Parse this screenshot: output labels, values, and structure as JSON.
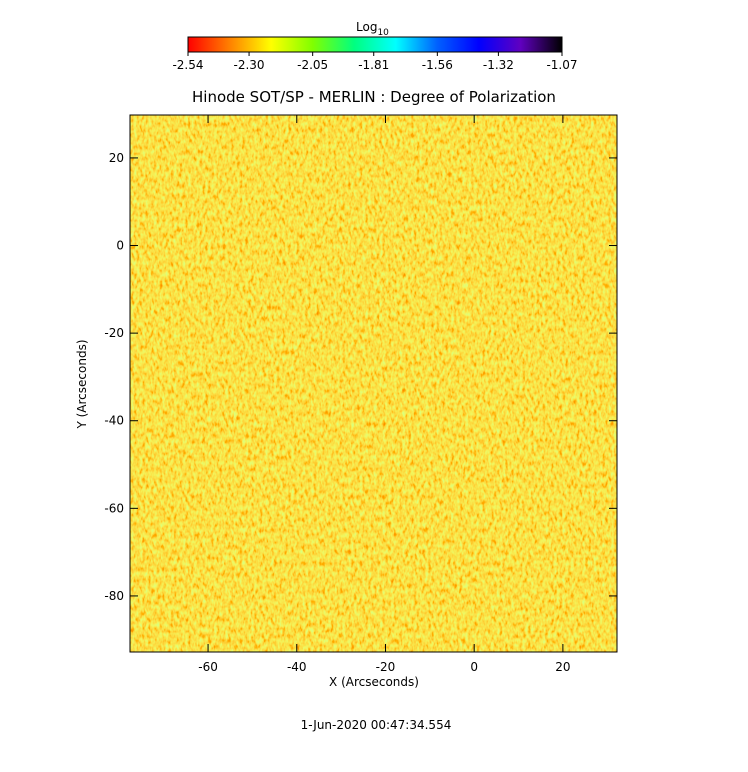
{
  "chart_data": {
    "type": "heatmap",
    "title": "Hinode SOT/SP - MERLIN : Degree of Polarization",
    "x_label": "X (Arcseconds)",
    "y_label": "Y (Arcseconds)",
    "footer": "1-Jun-2020 00:47:34.554",
    "xlim": [
      -77.6,
      32.2
    ],
    "xticks": [
      -60,
      -40,
      -20,
      0,
      20
    ],
    "ylim": [
      -92.8,
      29.8
    ],
    "yticks": [
      -80,
      -60,
      -40,
      -20,
      0,
      20
    ],
    "colorbar": {
      "label": "Log",
      "label_subscript": "10",
      "zlim": [
        -2.54,
        -1.07
      ],
      "ticks": [
        -2.54,
        {
          "value": -2.3,
          "label": "-2.30"
        },
        -2.05,
        -1.81,
        -1.56,
        -1.32,
        -1.07
      ],
      "colormap": [
        "#ff0000",
        "#ff8000",
        "#ffff00",
        "#80ff00",
        "#00ff80",
        "#00ffff",
        "#0060ff",
        "#0000ff",
        "#6000c0",
        "#000000"
      ]
    }
  }
}
